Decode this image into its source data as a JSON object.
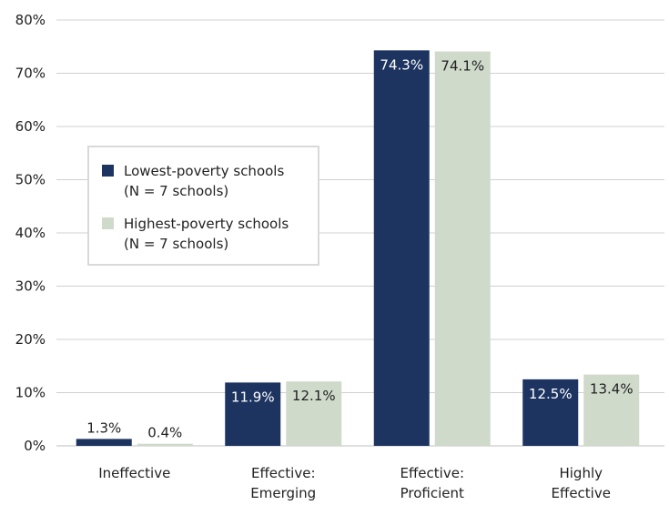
{
  "chart_data": {
    "type": "bar",
    "title": "",
    "xlabel": "",
    "ylabel": "",
    "ylim": [
      0,
      80
    ],
    "yticks": [
      "0%",
      "10%",
      "20%",
      "30%",
      "40%",
      "50%",
      "60%",
      "70%",
      "80%"
    ],
    "y_tick_values": [
      0,
      10,
      20,
      30,
      40,
      50,
      60,
      70,
      80
    ],
    "grid": true,
    "legend_position": "upper-left",
    "categories": [
      [
        "Ineffective"
      ],
      [
        "Effective:",
        "Emerging"
      ],
      [
        "Effective:",
        "Proficient"
      ],
      [
        "Highly",
        "Effective"
      ]
    ],
    "series": [
      {
        "name": "Lowest-poverty schools\n(N = 7 schools)",
        "color": "#1d3461",
        "values": [
          1.3,
          11.9,
          74.3,
          12.5
        ],
        "labels": [
          "1.3%",
          "11.9%",
          "74.3%",
          "12.5%"
        ]
      },
      {
        "name": "Highest-poverty schools\n(N = 7 schools)",
        "color": "#cfdacb",
        "values": [
          0.4,
          12.1,
          74.1,
          13.4
        ],
        "labels": [
          "0.4%",
          "12.1%",
          "74.1%",
          "13.4%"
        ]
      }
    ]
  }
}
